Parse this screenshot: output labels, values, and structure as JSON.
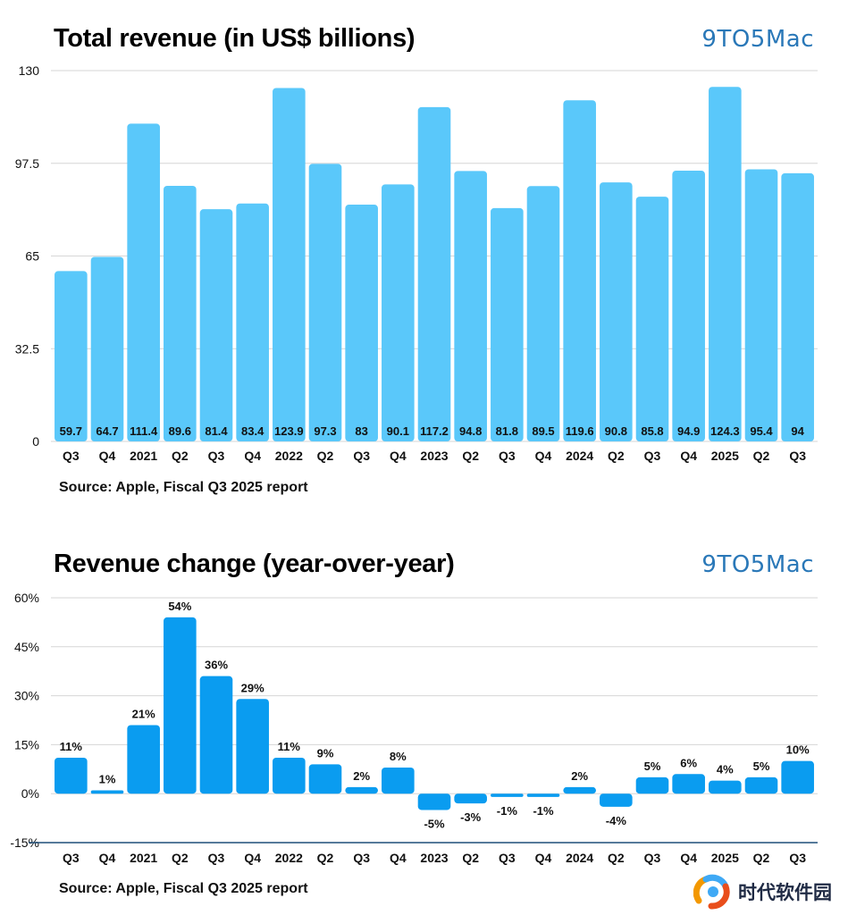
{
  "brand": {
    "name": "9TO5Mac"
  },
  "watermark": {
    "text": "时代软件园",
    "logo_colors": [
      "#f39800",
      "#3fa9f5",
      "#e94e1b"
    ]
  },
  "colors": {
    "revenue_bar": "#5ac8fa",
    "change_bar": "#0a9cf0",
    "grid": "#d6d6d6",
    "baseline": "#1f4e79"
  },
  "top": {
    "title": "Total revenue (in US$ billions)",
    "source": "Source: Apple, Fiscal Q3 2025 report"
  },
  "bottom": {
    "title": "Revenue change (year-over-year)",
    "source": "Source: Apple, Fiscal Q3 2025 report"
  },
  "chart_data": [
    {
      "type": "bar",
      "title": "Total revenue (in US$ billions)",
      "categories": [
        "Q3",
        "Q4",
        "2021",
        "Q2",
        "Q3",
        "Q4",
        "2022",
        "Q2",
        "Q3",
        "Q4",
        "2023",
        "Q2",
        "Q3",
        "Q4",
        "2024",
        "Q2",
        "Q3",
        "Q4",
        "2025",
        "Q2",
        "Q3"
      ],
      "values": [
        59.7,
        64.7,
        111.4,
        89.6,
        81.4,
        83.4,
        123.9,
        97.3,
        83,
        90.1,
        117.2,
        94.8,
        81.8,
        89.5,
        119.6,
        90.8,
        85.8,
        94.9,
        124.3,
        95.4,
        94
      ],
      "data_labels": [
        "59.7",
        "64.7",
        "111.4",
        "89.6",
        "81.4",
        "83.4",
        "123.9",
        "97.3",
        "83",
        "90.1",
        "117.2",
        "94.8",
        "81.8",
        "89.5",
        "119.6",
        "90.8",
        "85.8",
        "94.9",
        "124.3",
        "95.4",
        "94"
      ],
      "ylim": [
        0,
        130
      ],
      "yticks": [
        0,
        32.5,
        65,
        97.5,
        130
      ],
      "ytick_labels": [
        "0",
        "32.5",
        "65",
        "97.5",
        "130"
      ],
      "grid": true,
      "data_label_position": "inside-bottom",
      "xlabel": "",
      "ylabel": ""
    },
    {
      "type": "bar",
      "title": "Revenue change (year-over-year)",
      "categories": [
        "Q3",
        "Q4",
        "2021",
        "Q2",
        "Q3",
        "Q4",
        "2022",
        "Q2",
        "Q3",
        "Q4",
        "2023",
        "Q2",
        "Q3",
        "Q4",
        "2024",
        "Q2",
        "Q3",
        "Q4",
        "2025",
        "Q2",
        "Q3"
      ],
      "values": [
        11,
        1,
        21,
        54,
        36,
        29,
        11,
        9,
        2,
        8,
        -5,
        -3,
        -1,
        -1,
        2,
        -4,
        5,
        6,
        4,
        5,
        10
      ],
      "data_labels": [
        "11%",
        "1%",
        "21%",
        "54%",
        "36%",
        "29%",
        "11%",
        "9%",
        "2%",
        "8%",
        "-5%",
        "-3%",
        "-1%",
        "-1%",
        "2%",
        "-4%",
        "5%",
        "6%",
        "4%",
        "5%",
        "10%"
      ],
      "ylim": [
        -15,
        60
      ],
      "yticks": [
        -15,
        0,
        15,
        30,
        45,
        60
      ],
      "ytick_labels": [
        "-15%",
        "0%",
        "15%",
        "30%",
        "45%",
        "60%"
      ],
      "grid": true,
      "data_label_position": "outside-end",
      "xlabel": "",
      "ylabel": ""
    }
  ]
}
